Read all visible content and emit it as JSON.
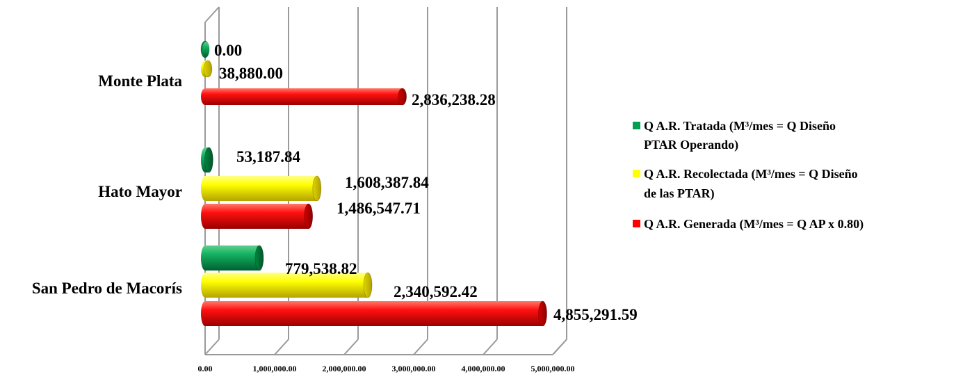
{
  "chart_data": {
    "type": "bar",
    "orientation": "horizontal",
    "style": "3d-cylinder",
    "categories": [
      "Monte Plata",
      "Hato Mayor",
      "San Pedro de Macorís"
    ],
    "series": [
      {
        "name": "Q A.R. Tratada (M³/mes = Q Diseño PTAR Operando)",
        "color": "#00A050",
        "values": [
          0.0,
          53187.84,
          779538.82
        ],
        "labels": [
          "0.00",
          "53,187.84",
          "779,538.82"
        ]
      },
      {
        "name": "Q A.R. Recolectada (M³/mes = Q Diseño de las PTAR)",
        "color": "#FFFF00",
        "values": [
          38880.0,
          1608387.84,
          2340592.42
        ],
        "labels": [
          "38,880.00",
          "1,608,387.84",
          "2,340,592.42"
        ]
      },
      {
        "name": "Q A.R. Generada (M³/mes = Q AP x 0.80)",
        "color": "#FF0000",
        "values": [
          2836238.28,
          1486547.71,
          4855291.59
        ],
        "labels": [
          "2,836,238.28",
          "1,486,547.71",
          "4,855,291.59"
        ]
      }
    ],
    "legend_lines": [
      [
        "Q A.R. Tratada (M³/mes = Q Diseño",
        "PTAR Operando)"
      ],
      [
        "Q A.R. Recolectada (M³/mes = Q Diseño",
        "de las PTAR)"
      ],
      [
        "Q A.R. Generada (M³/mes = Q AP x 0.80)"
      ]
    ],
    "x_ticks": [
      0,
      1000000,
      2000000,
      3000000,
      4000000,
      5000000
    ],
    "x_tick_labels": [
      "0.00",
      "1,000,000.00",
      "2,000,000.00",
      "3,000,000.00",
      "4,000,000.00",
      "5,000,000.00"
    ],
    "xlim": [
      0,
      5000000
    ],
    "grid": true,
    "legend_position": "right"
  }
}
